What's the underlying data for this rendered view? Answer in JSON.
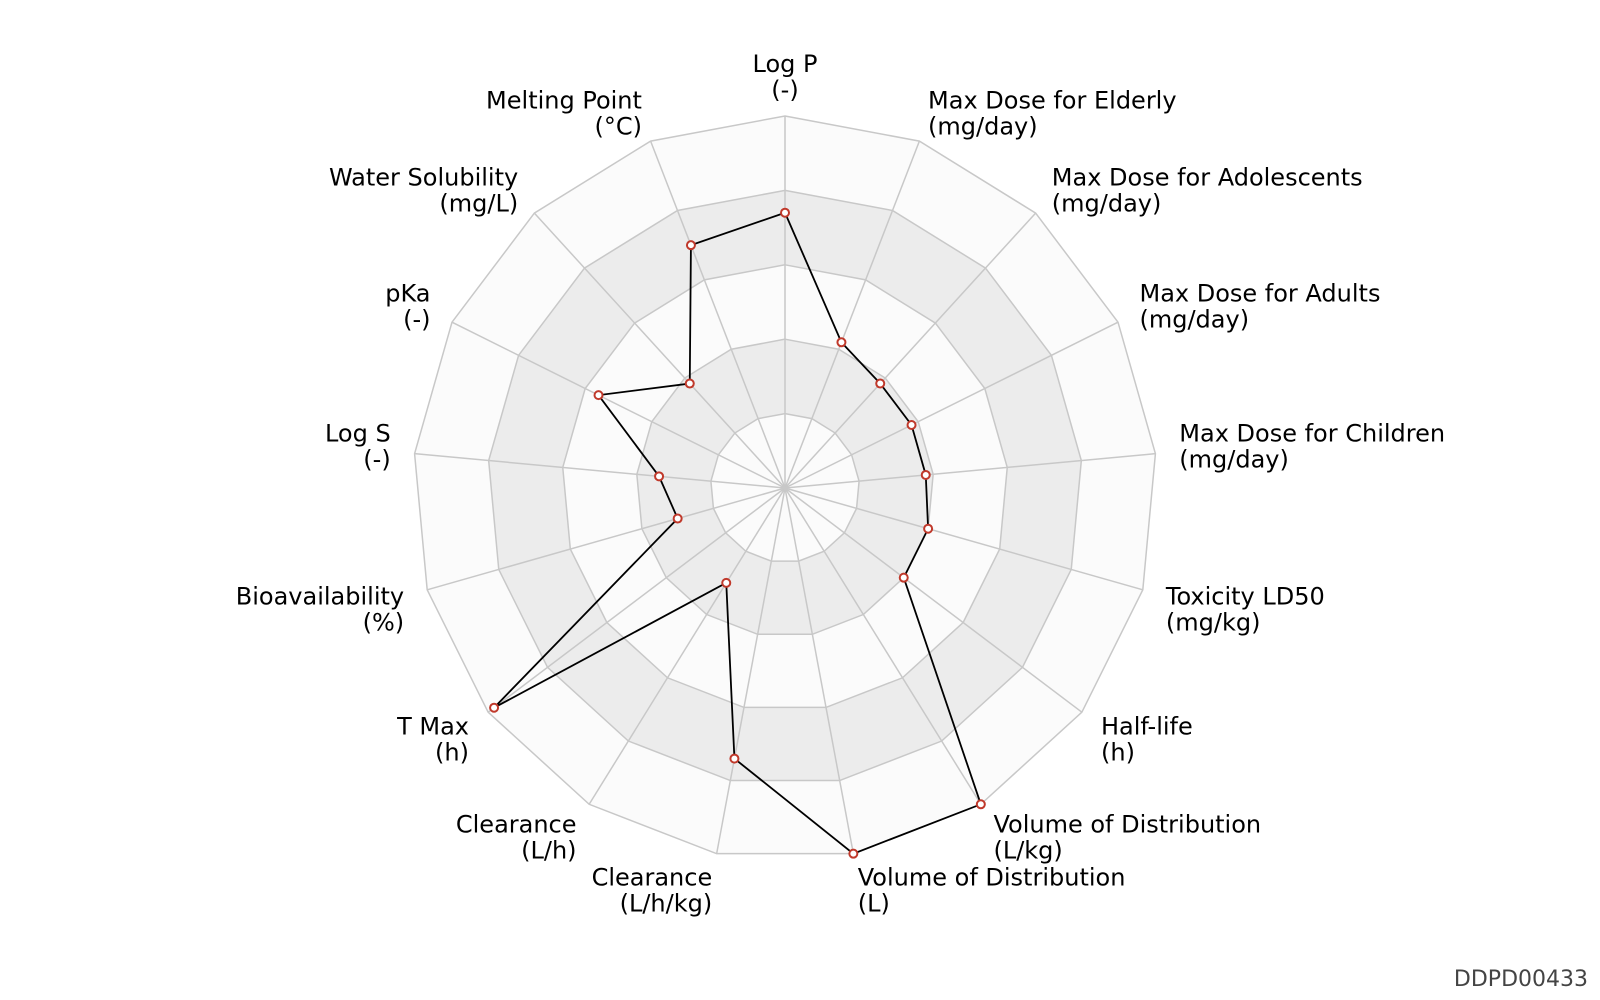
{
  "chart_data": {
    "type": "radar",
    "title": "",
    "rings": 5,
    "range": [
      0,
      5
    ],
    "grid": true,
    "axes": [
      {
        "name": "Log P",
        "unit": "(-)"
      },
      {
        "name": "Max Dose for Elderly",
        "unit": "(mg/day)"
      },
      {
        "name": "Max Dose for Adolescents",
        "unit": "(mg/day)"
      },
      {
        "name": "Max Dose for Adults",
        "unit": "(mg/day)"
      },
      {
        "name": "Max Dose for Children",
        "unit": "(mg/day)"
      },
      {
        "name": "Toxicity LD50",
        "unit": "(mg/kg)"
      },
      {
        "name": "Half-life",
        "unit": "(h)"
      },
      {
        "name": "Volume of Distribution",
        "unit": "(L/kg)"
      },
      {
        "name": "Volume of Distribution",
        "unit": "(L)"
      },
      {
        "name": "Clearance",
        "unit": "(L/h/kg)"
      },
      {
        "name": "Clearance",
        "unit": "(L/h)"
      },
      {
        "name": "T Max",
        "unit": "(h)"
      },
      {
        "name": "Bioavailability",
        "unit": "(%)"
      },
      {
        "name": "Log S",
        "unit": "(-)"
      },
      {
        "name": "pKa",
        "unit": "(-)"
      },
      {
        "name": "Water Solubility",
        "unit": "(mg/L)"
      },
      {
        "name": "Melting Point",
        "unit": "(°C)"
      }
    ],
    "series": [
      {
        "values": [
          3.7,
          2.1,
          1.9,
          1.9,
          1.9,
          2.0,
          2.0,
          5.0,
          5.0,
          3.7,
          1.5,
          4.9,
          1.5,
          1.7,
          2.8,
          1.9,
          3.5
        ]
      }
    ],
    "colors": {
      "line": "#000000",
      "marker_edge": "#c0392b",
      "marker_fill": "#ffffff",
      "band_light": "#fbfbfb",
      "band_dark": "#ececec",
      "grid": "#c8c8c8"
    }
  },
  "watermark": "DDPD00433"
}
